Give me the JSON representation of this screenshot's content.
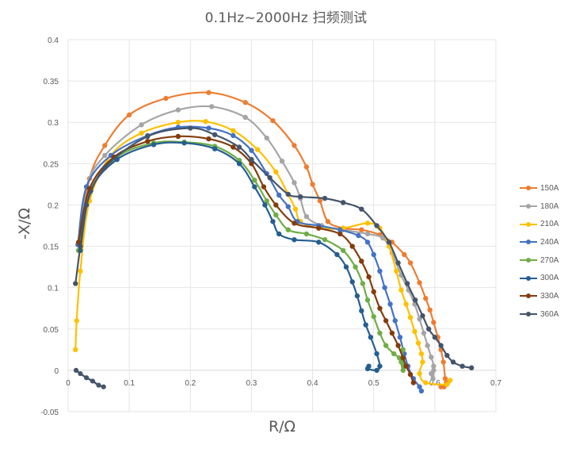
{
  "chart_data": {
    "type": "scatter",
    "title": "0.1Hz~2000Hz 扫频测试",
    "xlabel": "R/Ω",
    "ylabel": "-X/Ω",
    "xlim": [
      0,
      0.7
    ],
    "ylim": [
      -0.05,
      0.4
    ],
    "x_ticks": [
      "0",
      "0.1",
      "0.2",
      "0.3",
      "0.4",
      "0.5",
      "0.6",
      "0.7"
    ],
    "y_ticks": [
      "-0.05",
      "0",
      "0.05",
      "0.1",
      "0.15",
      "0.2",
      "0.25",
      "0.3",
      "0.35",
      "0.4"
    ],
    "grid": true,
    "legend_position": "right",
    "series": [
      {
        "name": "150A",
        "color": "#ED7D31",
        "points": [
          [
            0.018,
            0.155
          ],
          [
            0.035,
            0.232
          ],
          [
            0.06,
            0.272
          ],
          [
            0.1,
            0.309
          ],
          [
            0.16,
            0.329
          ],
          [
            0.23,
            0.336
          ],
          [
            0.29,
            0.324
          ],
          [
            0.335,
            0.302
          ],
          [
            0.37,
            0.272
          ],
          [
            0.39,
            0.246
          ],
          [
            0.4,
            0.225
          ],
          [
            0.412,
            0.205
          ],
          [
            0.425,
            0.18
          ],
          [
            0.45,
            0.172
          ],
          [
            0.48,
            0.17
          ],
          [
            0.51,
            0.164
          ],
          [
            0.53,
            0.155
          ],
          [
            0.55,
            0.14
          ],
          [
            0.56,
            0.13
          ],
          [
            0.575,
            0.106
          ],
          [
            0.585,
            0.087
          ],
          [
            0.592,
            0.073
          ],
          [
            0.598,
            0.058
          ],
          [
            0.605,
            0.04
          ],
          [
            0.61,
            0.025
          ],
          [
            0.614,
            0.01
          ],
          [
            0.617,
            -0.01
          ],
          [
            0.619,
            -0.015
          ],
          [
            0.615,
            -0.02
          ],
          [
            0.61,
            -0.02
          ]
        ]
      },
      {
        "name": "180A",
        "color": "#A5A5A5",
        "points": [
          [
            0.017,
            0.145
          ],
          [
            0.03,
            0.222
          ],
          [
            0.06,
            0.26
          ],
          [
            0.12,
            0.297
          ],
          [
            0.18,
            0.315
          ],
          [
            0.235,
            0.319
          ],
          [
            0.29,
            0.306
          ],
          [
            0.325,
            0.281
          ],
          [
            0.35,
            0.253
          ],
          [
            0.37,
            0.227
          ],
          [
            0.38,
            0.208
          ],
          [
            0.39,
            0.186
          ],
          [
            0.415,
            0.175
          ],
          [
            0.45,
            0.17
          ],
          [
            0.49,
            0.165
          ],
          [
            0.515,
            0.16
          ],
          [
            0.53,
            0.142
          ],
          [
            0.545,
            0.115
          ],
          [
            0.557,
            0.097
          ],
          [
            0.567,
            0.08
          ],
          [
            0.575,
            0.062
          ],
          [
            0.582,
            0.045
          ],
          [
            0.588,
            0.03
          ],
          [
            0.594,
            0.016
          ],
          [
            0.598,
            0.005
          ],
          [
            0.597,
            -0.01
          ],
          [
            0.594,
            -0.004
          ],
          [
            0.598,
            0.0
          ]
        ]
      },
      {
        "name": "210A",
        "color": "#FFC000",
        "points": [
          [
            0.012,
            0.025
          ],
          [
            0.014,
            0.06
          ],
          [
            0.02,
            0.12
          ],
          [
            0.035,
            0.205
          ],
          [
            0.07,
            0.26
          ],
          [
            0.12,
            0.287
          ],
          [
            0.18,
            0.3
          ],
          [
            0.225,
            0.301
          ],
          [
            0.27,
            0.29
          ],
          [
            0.31,
            0.267
          ],
          [
            0.34,
            0.24
          ],
          [
            0.36,
            0.213
          ],
          [
            0.372,
            0.195
          ],
          [
            0.38,
            0.18
          ],
          [
            0.41,
            0.172
          ],
          [
            0.45,
            0.172
          ],
          [
            0.49,
            0.178
          ],
          [
            0.51,
            0.172
          ],
          [
            0.525,
            0.15
          ],
          [
            0.537,
            0.12
          ],
          [
            0.545,
            0.097
          ],
          [
            0.553,
            0.08
          ],
          [
            0.56,
            0.064
          ],
          [
            0.567,
            0.047
          ],
          [
            0.573,
            0.033
          ],
          [
            0.578,
            0.02
          ],
          [
            0.58,
            0.01
          ],
          [
            0.575,
            -0.004
          ],
          [
            0.585,
            -0.015
          ],
          [
            0.62,
            -0.017
          ],
          [
            0.625,
            -0.012
          ]
        ]
      },
      {
        "name": "240A",
        "color": "#4472C4",
        "points": [
          [
            0.016,
            0.152
          ],
          [
            0.03,
            0.222
          ],
          [
            0.07,
            0.26
          ],
          [
            0.13,
            0.284
          ],
          [
            0.18,
            0.294
          ],
          [
            0.23,
            0.293
          ],
          [
            0.27,
            0.284
          ],
          [
            0.3,
            0.266
          ],
          [
            0.325,
            0.238
          ],
          [
            0.345,
            0.212
          ],
          [
            0.36,
            0.198
          ],
          [
            0.375,
            0.18
          ],
          [
            0.41,
            0.175
          ],
          [
            0.445,
            0.17
          ],
          [
            0.475,
            0.163
          ],
          [
            0.49,
            0.155
          ],
          [
            0.5,
            0.14
          ],
          [
            0.51,
            0.12
          ],
          [
            0.518,
            0.1
          ],
          [
            0.527,
            0.08
          ],
          [
            0.535,
            0.06
          ],
          [
            0.543,
            0.04
          ],
          [
            0.55,
            0.02
          ],
          [
            0.556,
            0.005
          ],
          [
            0.565,
            -0.01
          ],
          [
            0.575,
            -0.02
          ],
          [
            0.578,
            -0.025
          ]
        ]
      },
      {
        "name": "270A",
        "color": "#70AD47",
        "points": [
          [
            0.017,
            0.145
          ],
          [
            0.035,
            0.215
          ],
          [
            0.08,
            0.258
          ],
          [
            0.14,
            0.275
          ],
          [
            0.19,
            0.276
          ],
          [
            0.24,
            0.271
          ],
          [
            0.28,
            0.254
          ],
          [
            0.305,
            0.23
          ],
          [
            0.325,
            0.205
          ],
          [
            0.34,
            0.188
          ],
          [
            0.36,
            0.17
          ],
          [
            0.39,
            0.165
          ],
          [
            0.42,
            0.158
          ],
          [
            0.45,
            0.145
          ],
          [
            0.47,
            0.125
          ],
          [
            0.482,
            0.105
          ],
          [
            0.49,
            0.085
          ],
          [
            0.5,
            0.065
          ],
          [
            0.51,
            0.045
          ],
          [
            0.52,
            0.03
          ],
          [
            0.533,
            0.02
          ],
          [
            0.542,
            0.015
          ],
          [
            0.548,
            0.008
          ],
          [
            0.548,
            0.0
          ],
          [
            0.545,
            0.01
          ],
          [
            0.548,
            0.025
          ]
        ]
      },
      {
        "name": "300A",
        "color": "#255E91",
        "points": [
          [
            0.02,
            0.145
          ],
          [
            0.037,
            0.217
          ],
          [
            0.08,
            0.255
          ],
          [
            0.14,
            0.273
          ],
          [
            0.19,
            0.275
          ],
          [
            0.24,
            0.268
          ],
          [
            0.28,
            0.25
          ],
          [
            0.305,
            0.222
          ],
          [
            0.322,
            0.2
          ],
          [
            0.335,
            0.18
          ],
          [
            0.345,
            0.165
          ],
          [
            0.37,
            0.158
          ],
          [
            0.41,
            0.155
          ],
          [
            0.44,
            0.14
          ],
          [
            0.455,
            0.125
          ],
          [
            0.465,
            0.107
          ],
          [
            0.473,
            0.09
          ],
          [
            0.48,
            0.072
          ],
          [
            0.487,
            0.055
          ],
          [
            0.495,
            0.04
          ],
          [
            0.505,
            0.02
          ],
          [
            0.51,
            0.005
          ],
          [
            0.505,
            0.0
          ],
          [
            0.49,
            0.002
          ],
          [
            0.492,
            0.005
          ]
        ]
      },
      {
        "name": "330A",
        "color": "#843C0C",
        "points": [
          [
            0.017,
            0.155
          ],
          [
            0.035,
            0.22
          ],
          [
            0.075,
            0.258
          ],
          [
            0.13,
            0.277
          ],
          [
            0.18,
            0.283
          ],
          [
            0.23,
            0.28
          ],
          [
            0.27,
            0.27
          ],
          [
            0.3,
            0.25
          ],
          [
            0.32,
            0.222
          ],
          [
            0.34,
            0.2
          ],
          [
            0.37,
            0.178
          ],
          [
            0.41,
            0.172
          ],
          [
            0.445,
            0.165
          ],
          [
            0.465,
            0.15
          ],
          [
            0.48,
            0.132
          ],
          [
            0.492,
            0.113
          ],
          [
            0.5,
            0.095
          ],
          [
            0.51,
            0.075
          ],
          [
            0.52,
            0.06
          ],
          [
            0.53,
            0.045
          ],
          [
            0.54,
            0.03
          ],
          [
            0.548,
            0.015
          ],
          [
            0.553,
            0.005
          ],
          [
            0.56,
            -0.005
          ],
          [
            0.565,
            -0.015
          ]
        ]
      },
      {
        "name": "360A",
        "color": "#44546A",
        "points": [
          [
            0.012,
            0.105
          ],
          [
            0.02,
            0.15
          ],
          [
            0.03,
            0.2
          ],
          [
            0.06,
            0.245
          ],
          [
            0.13,
            0.283
          ],
          [
            0.2,
            0.293
          ],
          [
            0.24,
            0.285
          ],
          [
            0.28,
            0.27
          ],
          [
            0.3,
            0.255
          ],
          [
            0.33,
            0.233
          ],
          [
            0.36,
            0.213
          ],
          [
            0.38,
            0.21
          ],
          [
            0.42,
            0.208
          ],
          [
            0.45,
            0.203
          ],
          [
            0.48,
            0.195
          ],
          [
            0.505,
            0.175
          ],
          [
            0.525,
            0.155
          ],
          [
            0.54,
            0.13
          ],
          [
            0.555,
            0.105
          ],
          [
            0.568,
            0.085
          ],
          [
            0.58,
            0.066
          ],
          [
            0.59,
            0.05
          ],
          [
            0.6,
            0.04
          ],
          [
            0.61,
            0.03
          ],
          [
            0.62,
            0.018
          ],
          [
            0.63,
            0.01
          ],
          [
            0.645,
            0.005
          ],
          [
            0.66,
            0.003
          ]
        ]
      }
    ],
    "origin_cluster": [
      [
        0.013,
        0.0
      ],
      [
        0.02,
        -0.004
      ],
      [
        0.03,
        -0.009
      ],
      [
        0.04,
        -0.013
      ],
      [
        0.05,
        -0.018
      ],
      [
        0.058,
        -0.02
      ]
    ]
  }
}
